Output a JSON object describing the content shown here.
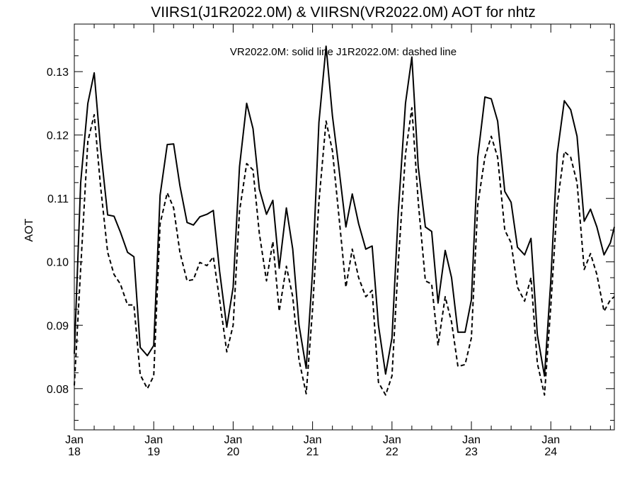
{
  "chart_data": {
    "type": "line",
    "title": "VIIRS1(J1R2022.0M) & VIIRSN(VR2022.0M)  AOT for nhtz",
    "annotation": "VR2022.0M: solid line   J1R2022.0M: dashed line",
    "xlabel": "",
    "ylabel": "AOT",
    "ylim": [
      0.0735,
      0.1375
    ],
    "xlim": [
      0,
      6.8
    ],
    "grid": false,
    "x_ticks": [
      {
        "x": 0,
        "month": "Jan",
        "day": "18"
      },
      {
        "x": 1,
        "month": "Jan",
        "day": "19"
      },
      {
        "x": 2,
        "month": "Jan",
        "day": "20"
      },
      {
        "x": 3,
        "month": "Jan",
        "day": "21"
      },
      {
        "x": 4,
        "month": "Jan",
        "day": "22"
      },
      {
        "x": 5,
        "month": "Jan",
        "day": "23"
      },
      {
        "x": 6,
        "month": "Jan",
        "day": "24"
      }
    ],
    "y_ticks": [
      {
        "value": 0.08,
        "label": "0.08"
      },
      {
        "value": 0.09,
        "label": "0.09"
      },
      {
        "value": 0.1,
        "label": "0.10"
      },
      {
        "value": 0.11,
        "label": "0.11"
      },
      {
        "value": 0.12,
        "label": "0.12"
      },
      {
        "value": 0.13,
        "label": "0.13"
      }
    ],
    "series": [
      {
        "name": "VR2022.0M",
        "style": "solid",
        "color": "#000000",
        "points": [
          [
            0.0,
            0.0855
          ],
          [
            0.08,
            0.1125
          ],
          [
            0.17,
            0.125
          ],
          [
            0.25,
            0.1298
          ],
          [
            0.33,
            0.118
          ],
          [
            0.42,
            0.1074
          ],
          [
            0.5,
            0.1072
          ],
          [
            0.58,
            0.1047
          ],
          [
            0.67,
            0.1015
          ],
          [
            0.75,
            0.1008
          ],
          [
            0.83,
            0.0865
          ],
          [
            0.92,
            0.0852
          ],
          [
            1.0,
            0.0868
          ],
          [
            1.08,
            0.1105
          ],
          [
            1.17,
            0.1185
          ],
          [
            1.25,
            0.1186
          ],
          [
            1.33,
            0.112
          ],
          [
            1.42,
            0.1062
          ],
          [
            1.5,
            0.1058
          ],
          [
            1.58,
            0.1071
          ],
          [
            1.67,
            0.1075
          ],
          [
            1.75,
            0.1081
          ],
          [
            1.83,
            0.0985
          ],
          [
            1.92,
            0.0897
          ],
          [
            2.0,
            0.096
          ],
          [
            2.08,
            0.115
          ],
          [
            2.17,
            0.125
          ],
          [
            2.25,
            0.121
          ],
          [
            2.33,
            0.1115
          ],
          [
            2.42,
            0.1075
          ],
          [
            2.5,
            0.1097
          ],
          [
            2.58,
            0.099
          ],
          [
            2.67,
            0.1085
          ],
          [
            2.75,
            0.102
          ],
          [
            2.83,
            0.09
          ],
          [
            2.92,
            0.0832
          ],
          [
            3.0,
            0.0985
          ],
          [
            3.08,
            0.122
          ],
          [
            3.17,
            0.134
          ],
          [
            3.25,
            0.123
          ],
          [
            3.33,
            0.115
          ],
          [
            3.42,
            0.1055
          ],
          [
            3.5,
            0.1107
          ],
          [
            3.58,
            0.106
          ],
          [
            3.67,
            0.102
          ],
          [
            3.75,
            0.1025
          ],
          [
            3.83,
            0.09
          ],
          [
            3.92,
            0.0823
          ],
          [
            4.0,
            0.088
          ],
          [
            4.08,
            0.108
          ],
          [
            4.17,
            0.125
          ],
          [
            4.25,
            0.1323
          ],
          [
            4.33,
            0.115
          ],
          [
            4.42,
            0.1055
          ],
          [
            4.5,
            0.1048
          ],
          [
            4.58,
            0.0935
          ],
          [
            4.67,
            0.1018
          ],
          [
            4.75,
            0.0975
          ],
          [
            4.83,
            0.0889
          ],
          [
            4.92,
            0.0889
          ],
          [
            5.0,
            0.094
          ],
          [
            5.08,
            0.1165
          ],
          [
            5.17,
            0.126
          ],
          [
            5.25,
            0.1257
          ],
          [
            5.33,
            0.1222
          ],
          [
            5.42,
            0.1111
          ],
          [
            5.5,
            0.1094
          ],
          [
            5.58,
            0.1023
          ],
          [
            5.67,
            0.1011
          ],
          [
            5.75,
            0.1037
          ],
          [
            5.83,
            0.0885
          ],
          [
            5.92,
            0.082
          ],
          [
            6.0,
            0.097
          ],
          [
            6.08,
            0.117
          ],
          [
            6.17,
            0.1254
          ],
          [
            6.25,
            0.124
          ],
          [
            6.33,
            0.1198
          ],
          [
            6.42,
            0.1064
          ],
          [
            6.5,
            0.1083
          ],
          [
            6.58,
            0.1055
          ],
          [
            6.67,
            0.1011
          ],
          [
            6.75,
            0.103
          ],
          [
            6.8,
            0.1055
          ]
        ]
      },
      {
        "name": "J1R2022.0M",
        "style": "dashed",
        "color": "#000000",
        "points": [
          [
            0.0,
            0.0805
          ],
          [
            0.08,
            0.099
          ],
          [
            0.17,
            0.119
          ],
          [
            0.25,
            0.1232
          ],
          [
            0.33,
            0.112
          ],
          [
            0.42,
            0.1015
          ],
          [
            0.5,
            0.098
          ],
          [
            0.58,
            0.0965
          ],
          [
            0.67,
            0.0932
          ],
          [
            0.75,
            0.0932
          ],
          [
            0.83,
            0.0822
          ],
          [
            0.92,
            0.08
          ],
          [
            1.0,
            0.082
          ],
          [
            1.08,
            0.106
          ],
          [
            1.17,
            0.1109
          ],
          [
            1.25,
            0.1085
          ],
          [
            1.33,
            0.1015
          ],
          [
            1.42,
            0.097
          ],
          [
            1.5,
            0.0972
          ],
          [
            1.58,
            0.0999
          ],
          [
            1.67,
            0.0994
          ],
          [
            1.75,
            0.1008
          ],
          [
            1.83,
            0.094
          ],
          [
            1.92,
            0.0858
          ],
          [
            2.0,
            0.09
          ],
          [
            2.08,
            0.108
          ],
          [
            2.17,
            0.1155
          ],
          [
            2.25,
            0.1145
          ],
          [
            2.33,
            0.1045
          ],
          [
            2.42,
            0.097
          ],
          [
            2.5,
            0.1032
          ],
          [
            2.58,
            0.0922
          ],
          [
            2.67,
            0.0993
          ],
          [
            2.75,
            0.0945
          ],
          [
            2.83,
            0.0845
          ],
          [
            2.92,
            0.0792
          ],
          [
            3.0,
            0.0925
          ],
          [
            3.08,
            0.1095
          ],
          [
            3.17,
            0.1222
          ],
          [
            3.25,
            0.1175
          ],
          [
            3.33,
            0.1075
          ],
          [
            3.42,
            0.096
          ],
          [
            3.5,
            0.102
          ],
          [
            3.58,
            0.0975
          ],
          [
            3.67,
            0.0945
          ],
          [
            3.75,
            0.0955
          ],
          [
            3.83,
            0.081
          ],
          [
            3.92,
            0.079
          ],
          [
            4.0,
            0.082
          ],
          [
            4.08,
            0.1
          ],
          [
            4.17,
            0.117
          ],
          [
            4.25,
            0.1243
          ],
          [
            4.33,
            0.1095
          ],
          [
            4.42,
            0.097
          ],
          [
            4.5,
            0.0965
          ],
          [
            4.58,
            0.0868
          ],
          [
            4.67,
            0.0945
          ],
          [
            4.75,
            0.0905
          ],
          [
            4.83,
            0.0835
          ],
          [
            4.92,
            0.0838
          ],
          [
            5.0,
            0.088
          ],
          [
            5.08,
            0.109
          ],
          [
            5.17,
            0.1165
          ],
          [
            5.25,
            0.1198
          ],
          [
            5.33,
            0.1165
          ],
          [
            5.42,
            0.105
          ],
          [
            5.5,
            0.103
          ],
          [
            5.58,
            0.096
          ],
          [
            5.67,
            0.0938
          ],
          [
            5.75,
            0.0975
          ],
          [
            5.83,
            0.084
          ],
          [
            5.92,
            0.079
          ],
          [
            6.0,
            0.093
          ],
          [
            6.08,
            0.109
          ],
          [
            6.17,
            0.1174
          ],
          [
            6.25,
            0.1165
          ],
          [
            6.33,
            0.1125
          ],
          [
            6.42,
            0.0988
          ],
          [
            6.5,
            0.1013
          ],
          [
            6.58,
            0.098
          ],
          [
            6.67,
            0.0922
          ],
          [
            6.75,
            0.094
          ],
          [
            6.8,
            0.0945
          ]
        ]
      }
    ]
  }
}
